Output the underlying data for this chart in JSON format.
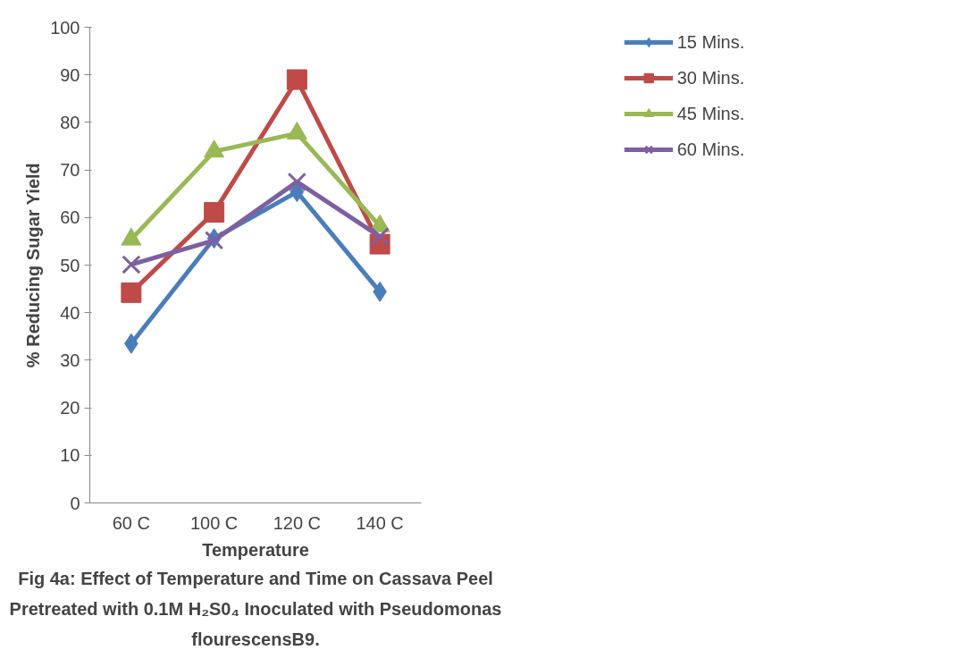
{
  "chart_data": {
    "type": "line",
    "xlabel": "Temperature",
    "ylabel": "% Reducing Sugar Yield",
    "categories": [
      "60 C",
      "100 C",
      "120 C",
      "140 C"
    ],
    "series": [
      {
        "name": "15 Mins.",
        "color": "#4a7ebb",
        "marker": "diamond",
        "values": [
          33.5,
          55.6,
          65.4,
          44.4
        ]
      },
      {
        "name": "30 Mins.",
        "color": "#be4b48",
        "marker": "square",
        "values": [
          44.2,
          61.1,
          89,
          54.4
        ]
      },
      {
        "name": "45 Mins.",
        "color": "#98b954",
        "marker": "triangle",
        "values": [
          55.4,
          73.9,
          77.7,
          58.2
        ]
      },
      {
        "name": "60 Mins.",
        "color": "#7d60a0",
        "marker": "x",
        "values": [
          50.1,
          55.2,
          67.5,
          56
        ]
      }
    ],
    "ylim": [
      0,
      100
    ],
    "yticks": [
      0,
      10,
      20,
      30,
      40,
      50,
      60,
      70,
      80,
      90,
      100
    ],
    "grid": false,
    "legend": "top right",
    "line_style": "solid",
    "annotations": [
      "Fig 4a: Effect of Temperature and Time on Cassava Peel",
      "Pretreated with 0.1M H₂S0₄ Inoculated with Pseudomonas",
      "flourescensB9."
    ]
  }
}
